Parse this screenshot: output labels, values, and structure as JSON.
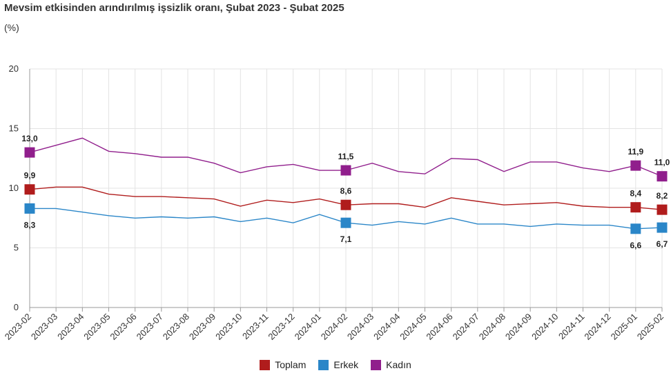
{
  "title": "Mevsim etkisinden arındırılmış işsizlik oranı, Şubat 2023 - Şubat 2025",
  "subtitle": "(%)",
  "chart_data": {
    "type": "line",
    "title": "Mevsim etkisinden arındırılmış işsizlik oranı, Şubat 2023 - Şubat 2025",
    "ylabel": "(%)",
    "ylim": [
      0,
      20
    ],
    "yticks": [
      "0",
      "5",
      "10",
      "15",
      "20"
    ],
    "grid": true,
    "legend_position": "bottom",
    "categories": [
      "2023-02",
      "2023-03",
      "2023-04",
      "2023-05",
      "2023-06",
      "2023-07",
      "2023-08",
      "2023-09",
      "2023-10",
      "2023-11",
      "2023-12",
      "2024-01",
      "2024-02",
      "2024-03",
      "2024-04",
      "2024-05",
      "2024-06",
      "2024-07",
      "2024-08",
      "2024-09",
      "2024-10",
      "2024-11",
      "2024-12",
      "2025-01",
      "2025-02"
    ],
    "series": [
      {
        "name": "Toplam",
        "color": "#b01c1c",
        "values": [
          9.9,
          10.1,
          10.1,
          9.5,
          9.3,
          9.3,
          9.2,
          9.1,
          8.5,
          9.0,
          8.8,
          9.1,
          8.6,
          8.7,
          8.7,
          8.4,
          9.2,
          8.9,
          8.6,
          8.7,
          8.8,
          8.5,
          8.4,
          8.4,
          8.2
        ],
        "labels": [
          {
            "index": 0,
            "text": "9,9"
          },
          {
            "index": 12,
            "text": "8,6"
          },
          {
            "index": 23,
            "text": "8,4"
          },
          {
            "index": 24,
            "text": "8,2"
          }
        ]
      },
      {
        "name": "Erkek",
        "color": "#2a86c8",
        "values": [
          8.3,
          8.3,
          8.0,
          7.7,
          7.5,
          7.6,
          7.5,
          7.6,
          7.2,
          7.5,
          7.1,
          7.8,
          7.1,
          6.9,
          7.2,
          7.0,
          7.5,
          7.0,
          7.0,
          6.8,
          7.0,
          6.9,
          6.9,
          6.6,
          6.7
        ],
        "labels": [
          {
            "index": 0,
            "text": "8,3"
          },
          {
            "index": 12,
            "text": "7,1"
          },
          {
            "index": 23,
            "text": "6,6"
          },
          {
            "index": 24,
            "text": "6,7"
          }
        ]
      },
      {
        "name": "Kadın",
        "color": "#901e8c",
        "values": [
          13.0,
          13.6,
          14.2,
          13.1,
          12.9,
          12.6,
          12.6,
          12.1,
          11.3,
          11.8,
          12.0,
          11.5,
          11.5,
          12.1,
          11.4,
          11.2,
          12.5,
          12.4,
          11.4,
          12.2,
          12.2,
          11.7,
          11.4,
          11.9,
          11.0
        ],
        "labels": [
          {
            "index": 0,
            "text": "13,0"
          },
          {
            "index": 12,
            "text": "11,5"
          },
          {
            "index": 23,
            "text": "11,9"
          },
          {
            "index": 24,
            "text": "11,0"
          }
        ]
      }
    ]
  }
}
